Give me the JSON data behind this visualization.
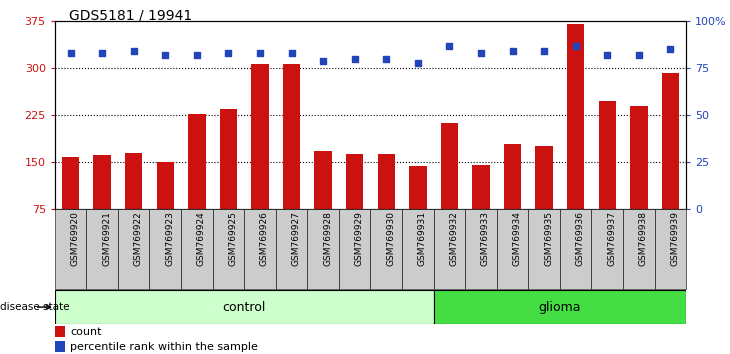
{
  "title": "GDS5181 / 19941",
  "samples": [
    "GSM769920",
    "GSM769921",
    "GSM769922",
    "GSM769923",
    "GSM769924",
    "GSM769925",
    "GSM769926",
    "GSM769927",
    "GSM769928",
    "GSM769929",
    "GSM769930",
    "GSM769931",
    "GSM769932",
    "GSM769933",
    "GSM769934",
    "GSM769935",
    "GSM769936",
    "GSM769937",
    "GSM769938",
    "GSM769939"
  ],
  "counts": [
    158,
    161,
    165,
    150,
    227,
    235,
    307,
    307,
    168,
    163,
    163,
    143,
    213,
    145,
    178,
    175,
    370,
    247,
    240,
    293
  ],
  "percentile": [
    83,
    83,
    84,
    82,
    82,
    83,
    83,
    83,
    79,
    80,
    80,
    78,
    87,
    83,
    84,
    84,
    87,
    82,
    82,
    85
  ],
  "n_control": 12,
  "ylim_left": [
    75,
    375
  ],
  "ylim_right": [
    0,
    100
  ],
  "yticks_left": [
    75,
    150,
    225,
    300,
    375
  ],
  "yticks_right": [
    0,
    25,
    50,
    75,
    100
  ],
  "gridlines_at": [
    150,
    225,
    300
  ],
  "bar_color": "#cc1111",
  "dot_color": "#2244bb",
  "control_fill": "#ccffcc",
  "glioma_fill": "#44dd44",
  "tick_bg": "#cccccc",
  "label_count": "count",
  "label_percentile": "percentile rank within the sample",
  "disease_state_label": "disease state",
  "control_label": "control",
  "glioma_label": "glioma"
}
